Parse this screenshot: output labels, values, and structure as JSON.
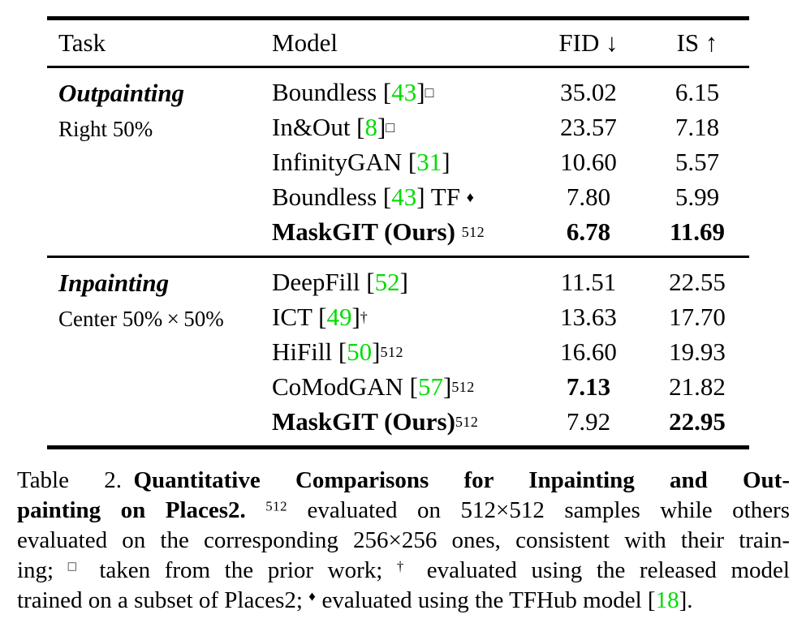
{
  "colors": {
    "green": "#00DC00",
    "text": "#000000",
    "background": "#ffffff"
  },
  "table": {
    "header": {
      "task": "Task",
      "model": "Model",
      "fid": "FID ↓",
      "is": "IS ↑"
    },
    "sections": [
      {
        "task_title": "Outpainting",
        "task_subtitle": "Right 50%",
        "rows": [
          {
            "model": [
              {
                "t": "Boundless ["
              },
              {
                "t": "43",
                "green": true
              },
              {
                "t": "]"
              },
              {
                "t": "□",
                "sup": true
              }
            ],
            "fid": "35.02",
            "is": "6.15"
          },
          {
            "model": [
              {
                "t": "In&Out ["
              },
              {
                "t": "8",
                "green": true
              },
              {
                "t": "]"
              },
              {
                "t": "□",
                "sup": true
              }
            ],
            "fid": "23.57",
            "is": "7.18"
          },
          {
            "model": [
              {
                "t": "InfinityGAN ["
              },
              {
                "t": "31",
                "green": true
              },
              {
                "t": "]"
              }
            ],
            "fid": "10.60",
            "is": "5.57"
          },
          {
            "model": [
              {
                "t": "Boundless ["
              },
              {
                "t": "43",
                "green": true
              },
              {
                "t": "] TF "
              },
              {
                "t": "♦",
                "sup": true
              }
            ],
            "fid": "7.80",
            "is": "5.99"
          },
          {
            "model": [
              {
                "t": "MaskGIT (Ours) ",
                "bold": true
              },
              {
                "t": "512",
                "sup": true
              }
            ],
            "fid": "6.78",
            "is": "11.69",
            "fid_bold": true,
            "is_bold": true
          }
        ]
      },
      {
        "task_title": "Inpainting",
        "task_subtitle": "Center 50% × 50%",
        "rows": [
          {
            "model": [
              {
                "t": "DeepFill ["
              },
              {
                "t": "52",
                "green": true
              },
              {
                "t": "]"
              }
            ],
            "fid": "11.51",
            "is": "22.55"
          },
          {
            "model": [
              {
                "t": "ICT ["
              },
              {
                "t": "49",
                "green": true
              },
              {
                "t": "]"
              },
              {
                "t": "†",
                "sup": true
              }
            ],
            "fid": "13.63",
            "is": "17.70"
          },
          {
            "model": [
              {
                "t": "HiFill ["
              },
              {
                "t": "50",
                "green": true
              },
              {
                "t": "]"
              },
              {
                "t": "512",
                "sup": true
              }
            ],
            "fid": "16.60",
            "is": "19.93"
          },
          {
            "model": [
              {
                "t": "CoModGAN ["
              },
              {
                "t": "57",
                "green": true
              },
              {
                "t": "]"
              },
              {
                "t": "512",
                "sup": true
              }
            ],
            "fid": "7.13",
            "is": "21.82",
            "fid_bold": true
          },
          {
            "model": [
              {
                "t": "MaskGIT (Ours)",
                "bold": true
              },
              {
                "t": "512",
                "sup": true
              }
            ],
            "fid": "7.92",
            "is": "22.95",
            "is_bold": true
          }
        ]
      }
    ]
  },
  "caption": {
    "lines": [
      [
        {
          "t": "Table 2. "
        },
        {
          "t": "Quantitative Comparisons for Inpainting and Out-",
          "bold": true
        }
      ],
      [
        {
          "t": "painting on Places2.",
          "bold": true
        },
        {
          "t": " "
        },
        {
          "t": "512",
          "sup": true
        },
        {
          "t": " evaluated on 512×512 samples while others"
        }
      ],
      [
        {
          "t": "evaluated on the corresponding 256×256 ones, consistent with their train-"
        }
      ],
      [
        {
          "t": "ing; "
        },
        {
          "t": "□",
          "sup": true
        },
        {
          "t": " taken from the prior work; "
        },
        {
          "t": "†",
          "sup": true
        },
        {
          "t": " evaluated using the released model"
        }
      ],
      [
        {
          "t": "trained on a subset of Places2; "
        },
        {
          "t": "♦",
          "sup": true
        },
        {
          "t": " evaluated using the TFHub model ["
        },
        {
          "t": "18",
          "green": true
        },
        {
          "t": "]."
        }
      ]
    ]
  }
}
